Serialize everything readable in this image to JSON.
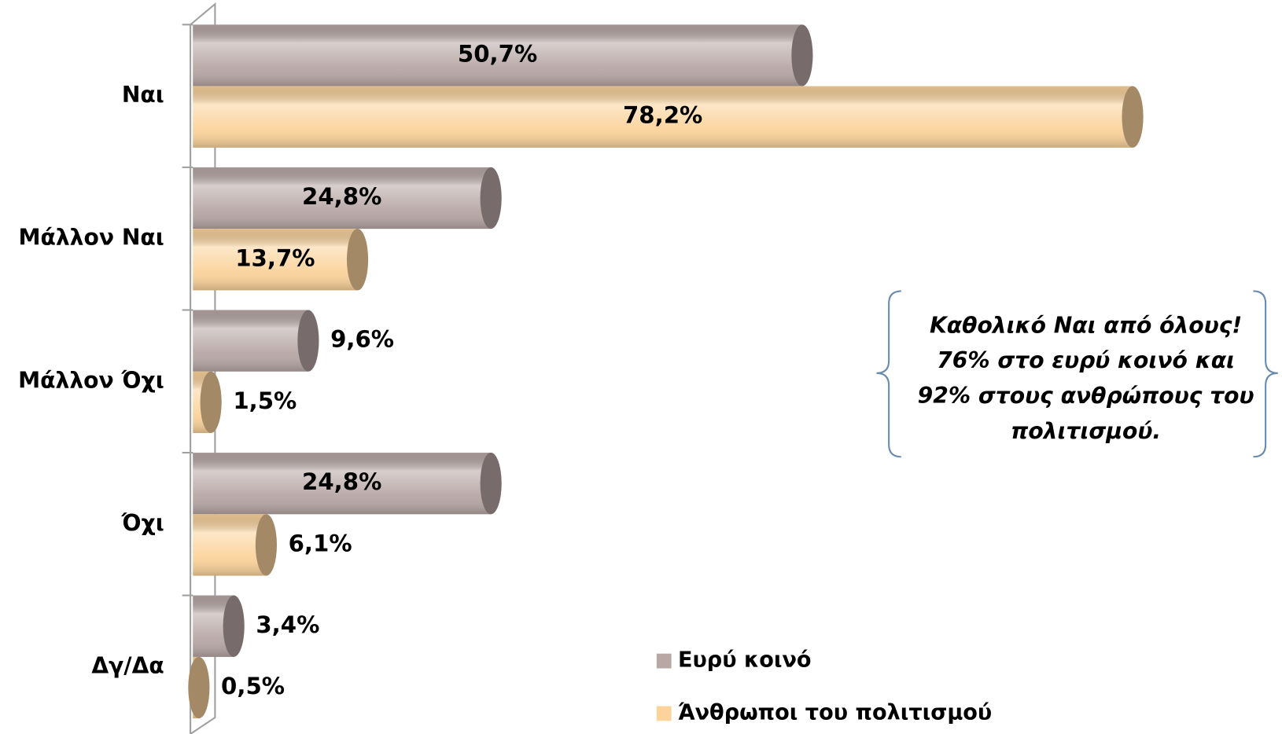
{
  "chart_data": {
    "type": "bar",
    "orientation": "horizontal",
    "categories": [
      "Ναι",
      "Μάλλον Ναι",
      "Μάλλον Όχι",
      "Όχι",
      "Δγ/Δα"
    ],
    "series": [
      {
        "name": "Ευρύ κοινό",
        "color": "#b7a7a5",
        "values": [
          50.7,
          24.8,
          9.6,
          24.8,
          3.4
        ],
        "value_labels": [
          "50,7%",
          "24,8%",
          "9,6%",
          "24,8%",
          "3,4%"
        ]
      },
      {
        "name": "Άνθρωποι του πολιτισμού",
        "color": "#fbd39b",
        "values": [
          78.2,
          13.7,
          1.5,
          6.1,
          0.5
        ],
        "value_labels": [
          "78,2%",
          "13,7%",
          "1,5%",
          "6,1%",
          "0,5%"
        ]
      }
    ],
    "annotation": [
      "Καθολικό Ναι από όλους!",
      "76% στο ευρύ κοινό και",
      "92% στους ανθρώπους του",
      "πολιτισμού."
    ],
    "legend": "bottom-right"
  }
}
